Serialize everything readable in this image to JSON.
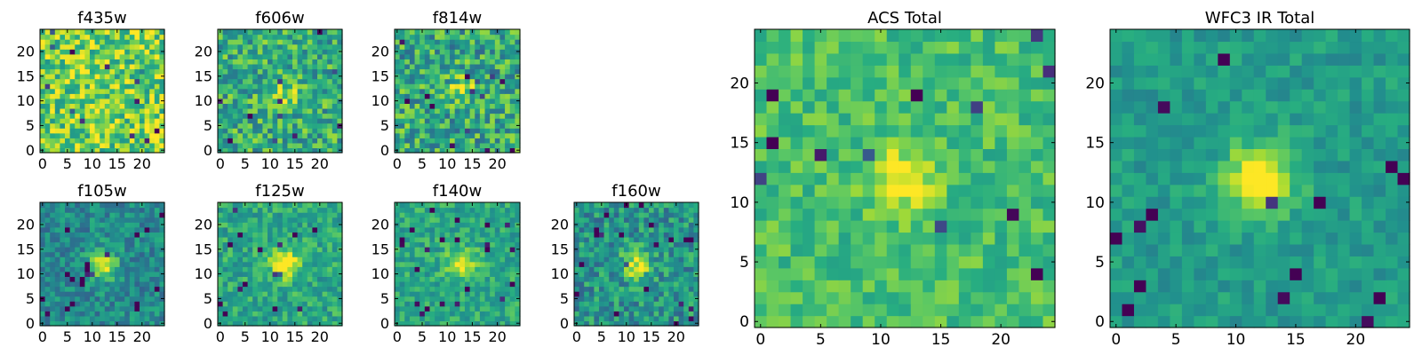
{
  "chart_data": [
    {
      "type": "heatmap",
      "title": "f435w",
      "colormap": "viridis",
      "grid": false,
      "shape": [
        25,
        25
      ],
      "xlim": [
        0,
        24
      ],
      "ylim": [
        0,
        24
      ],
      "origin": "lower",
      "xticks": [
        0,
        5,
        10,
        15,
        20
      ],
      "yticks": [
        0,
        5,
        10,
        15,
        20
      ],
      "source_peak": [
        12,
        11
      ],
      "source_strength": 0.0,
      "noise_level": 0.26,
      "mean_level": 0.78
    },
    {
      "type": "heatmap",
      "title": "f606w",
      "colormap": "viridis",
      "grid": false,
      "shape": [
        25,
        25
      ],
      "xlim": [
        0,
        24
      ],
      "ylim": [
        0,
        24
      ],
      "origin": "lower",
      "xticks": [
        0,
        5,
        10,
        15,
        20
      ],
      "yticks": [
        0,
        5,
        10,
        15,
        20
      ],
      "source_peak": [
        13,
        11
      ],
      "source_strength": 0.25,
      "noise_level": 0.24,
      "mean_level": 0.62
    },
    {
      "type": "heatmap",
      "title": "f814w",
      "colormap": "viridis",
      "grid": false,
      "shape": [
        25,
        25
      ],
      "xlim": [
        0,
        24
      ],
      "ylim": [
        0,
        24
      ],
      "origin": "lower",
      "xticks": [
        0,
        5,
        10,
        15,
        20
      ],
      "yticks": [
        0,
        5,
        10,
        15,
        20
      ],
      "source_peak": [
        13,
        12
      ],
      "source_strength": 0.3,
      "noise_level": 0.26,
      "mean_level": 0.6
    },
    {
      "type": "heatmap",
      "title": "f105w",
      "colormap": "viridis",
      "grid": false,
      "shape": [
        25,
        25
      ],
      "xlim": [
        0,
        24
      ],
      "ylim": [
        0,
        24
      ],
      "origin": "lower",
      "xticks": [
        0,
        5,
        10,
        15,
        20
      ],
      "yticks": [
        0,
        5,
        10,
        15,
        20
      ],
      "source_peak": [
        12,
        12
      ],
      "source_strength": 0.5,
      "noise_level": 0.16,
      "mean_level": 0.48
    },
    {
      "type": "heatmap",
      "title": "f125w",
      "colormap": "viridis",
      "grid": false,
      "shape": [
        25,
        25
      ],
      "xlim": [
        0,
        24
      ],
      "ylim": [
        0,
        24
      ],
      "origin": "lower",
      "xticks": [
        0,
        5,
        10,
        15,
        20
      ],
      "yticks": [
        0,
        5,
        10,
        15,
        20
      ],
      "source_peak": [
        13,
        12
      ],
      "source_strength": 0.45,
      "noise_level": 0.16,
      "mean_level": 0.6
    },
    {
      "type": "heatmap",
      "title": "f140w",
      "colormap": "viridis",
      "grid": false,
      "shape": [
        25,
        25
      ],
      "xlim": [
        0,
        24
      ],
      "ylim": [
        0,
        24
      ],
      "origin": "lower",
      "xticks": [
        0,
        5,
        10,
        15,
        20
      ],
      "yticks": [
        0,
        5,
        10,
        15,
        20
      ],
      "source_peak": [
        13,
        12
      ],
      "source_strength": 0.4,
      "noise_level": 0.15,
      "mean_level": 0.6
    },
    {
      "type": "heatmap",
      "title": "f160w",
      "colormap": "viridis",
      "grid": false,
      "shape": [
        25,
        25
      ],
      "xlim": [
        0,
        24
      ],
      "ylim": [
        0,
        24
      ],
      "origin": "lower",
      "xticks": [
        0,
        5,
        10,
        15,
        20
      ],
      "yticks": [
        0,
        5,
        10,
        15,
        20
      ],
      "source_peak": [
        12,
        12
      ],
      "source_strength": 0.45,
      "noise_level": 0.2,
      "mean_level": 0.52
    },
    {
      "type": "heatmap",
      "title": "ACS Total",
      "colormap": "viridis",
      "grid": false,
      "shape": [
        25,
        25
      ],
      "xlim": [
        0,
        24
      ],
      "ylim": [
        0,
        24
      ],
      "origin": "lower",
      "xticks": [
        0,
        5,
        10,
        15,
        20
      ],
      "yticks": [
        0,
        5,
        10,
        15,
        20
      ],
      "source_peak": [
        12,
        12
      ],
      "source_strength": 0.3,
      "noise_level": 0.13,
      "mean_level": 0.7
    },
    {
      "type": "heatmap",
      "title": "WFC3 IR Total",
      "colormap": "viridis",
      "grid": false,
      "shape": [
        25,
        25
      ],
      "xlim": [
        0,
        24
      ],
      "ylim": [
        0,
        24
      ],
      "origin": "lower",
      "xticks": [
        0,
        5,
        10,
        15,
        20
      ],
      "yticks": [
        0,
        5,
        10,
        15,
        20
      ],
      "source_peak": [
        12,
        12
      ],
      "source_strength": 0.55,
      "noise_level": 0.1,
      "mean_level": 0.55
    }
  ]
}
